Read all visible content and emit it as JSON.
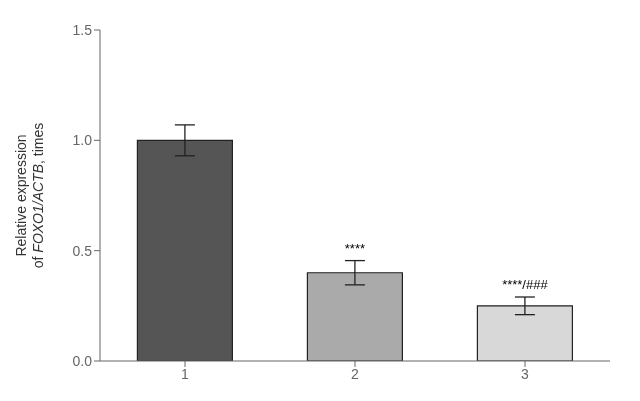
{
  "chart_data": {
    "type": "bar",
    "categories": [
      "1",
      "2",
      "3"
    ],
    "values": [
      1.0,
      0.4,
      0.25
    ],
    "errors": [
      0.07,
      0.055,
      0.04
    ],
    "colors": [
      "#555555",
      "#aaaaaa",
      "#d8d8d8"
    ],
    "ylabel": [
      "Relative expression",
      "of FOXO1/ACTB, times"
    ],
    "annotations": [
      {
        "category": "2",
        "text": "****"
      },
      {
        "category": "3",
        "text": "****/###"
      }
    ],
    "ylim": [
      0,
      1.5
    ],
    "yticks": [
      {
        "value": 0,
        "label": "0.0"
      },
      0.5,
      {
        "value": 1.0,
        "label": "1.0"
      },
      1.5
    ],
    "grid": false
  }
}
